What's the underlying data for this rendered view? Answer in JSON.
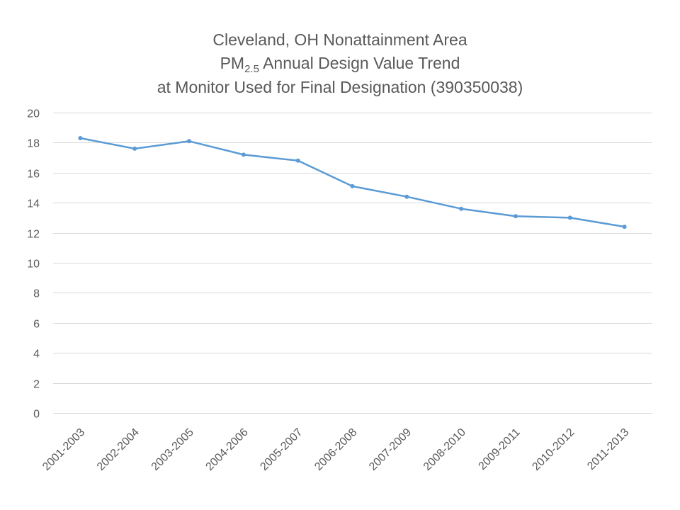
{
  "chart_data": {
    "type": "line",
    "title_lines": {
      "line1": "Cleveland, OH Nonattainment Area",
      "line2_main": "PM",
      "line2_sub": "2.5",
      "line2_rest": " Annual Design Value Trend",
      "line3": "at Monitor Used for Final Designation (390350038)"
    },
    "categories": [
      "2001-2003",
      "2002-2004",
      "2003-2005",
      "2004-2006",
      "2005-2007",
      "2006-2008",
      "2007-2009",
      "2008-2010",
      "2009-2011",
      "2010-2012",
      "2011-2013"
    ],
    "series": [
      {
        "values": [
          18.3,
          17.6,
          18.1,
          17.2,
          16.8,
          15.1,
          14.4,
          13.6,
          13.1,
          13.0,
          12.4
        ],
        "color": "#5b9bd5"
      }
    ],
    "ylim": [
      0,
      20
    ],
    "yticks": [
      0,
      2,
      4,
      6,
      8,
      10,
      12,
      14,
      16,
      18,
      20
    ],
    "grid": true,
    "legend": "none",
    "colors": {
      "grid": "#d9d9d9",
      "text": "#595959",
      "line": "#5b9bd5"
    }
  }
}
